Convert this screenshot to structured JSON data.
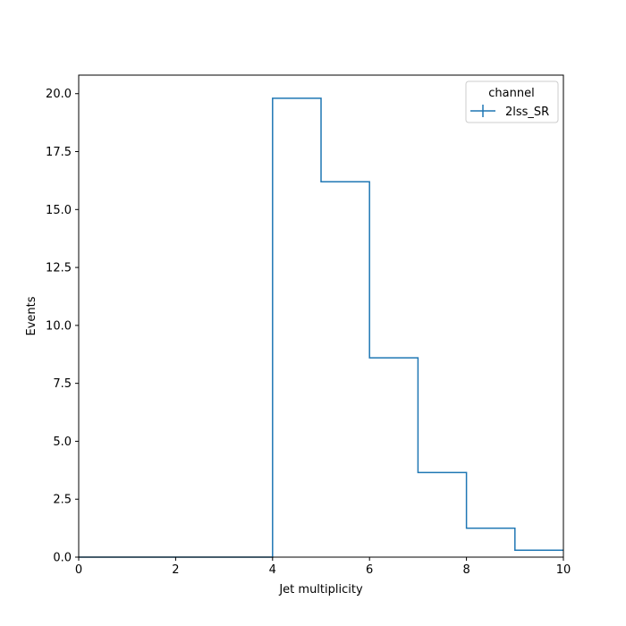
{
  "chart_data": {
    "type": "histogram-step",
    "xlabel": "Jet multiplicity",
    "ylabel": "Events",
    "xlim": [
      0,
      10
    ],
    "ylim": [
      0,
      20.8
    ],
    "xticks": [
      0,
      2,
      4,
      6,
      8,
      10
    ],
    "xtick_labels": [
      "0",
      "2",
      "4",
      "6",
      "8",
      "10"
    ],
    "yticks": [
      0,
      2.5,
      5,
      7.5,
      10,
      12.5,
      15,
      17.5,
      20
    ],
    "ytick_labels": [
      "0.0",
      "2.5",
      "5.0",
      "7.5",
      "10.0",
      "12.5",
      "15.0",
      "17.5",
      "20.0"
    ],
    "grid": false,
    "legend": {
      "title": "channel",
      "placement": "top-right",
      "entries": [
        "2lss_SR"
      ]
    },
    "series": [
      {
        "name": "2lss_SR",
        "color": "#1f77b4",
        "bin_edges": [
          0,
          1,
          2,
          3,
          4,
          5,
          6,
          7,
          8,
          9,
          10
        ],
        "values": [
          0,
          0,
          0,
          0,
          19.8,
          16.2,
          8.6,
          3.65,
          1.25,
          0.3
        ]
      }
    ]
  }
}
